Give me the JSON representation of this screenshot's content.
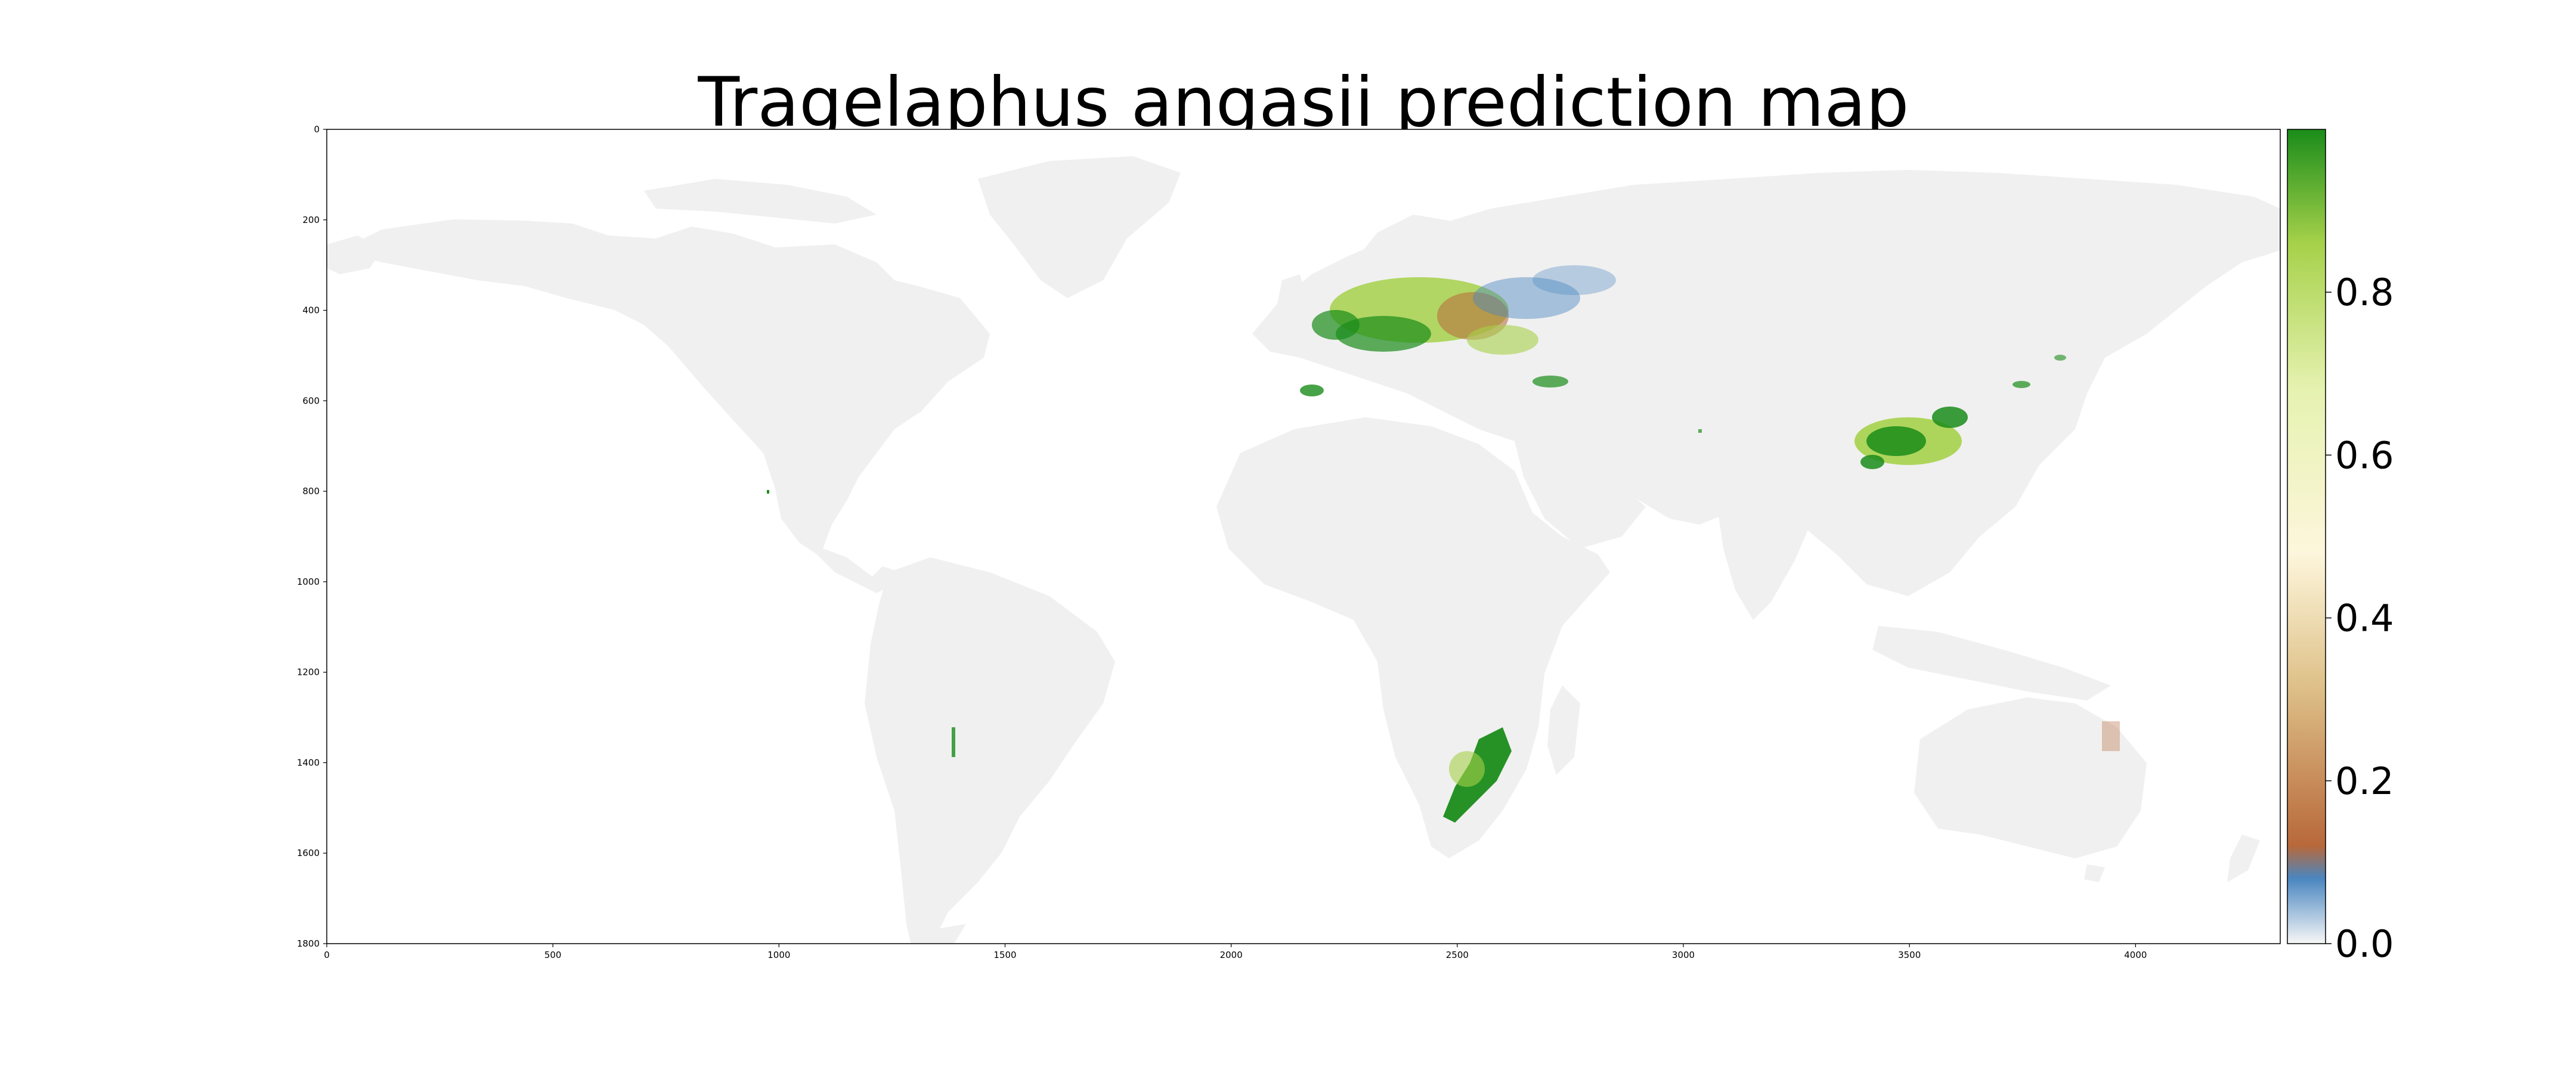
{
  "title": "Tragelaphus angasii prediction map",
  "colors": {
    "land": "#f0f0f0",
    "ocean": "#ffffff",
    "prediction_high": "#1a8c1a",
    "prediction_mid": "#a6d14a",
    "prediction_low": "#b8683a",
    "prediction_min": "#4a86c0"
  },
  "map": {
    "xlim": [
      0,
      4320
    ],
    "ylim": [
      1800,
      0
    ],
    "x_ticks": [
      "0",
      "500",
      "1000",
      "1500",
      "2000",
      "2500",
      "3000",
      "3500",
      "4000"
    ],
    "y_ticks": [
      "0",
      "200",
      "400",
      "600",
      "800",
      "1000",
      "1200",
      "1400",
      "1600",
      "1800"
    ]
  },
  "colorbar": {
    "range": [
      0.0,
      1.0
    ],
    "tick_labels": [
      "0.0",
      "0.2",
      "0.4",
      "0.6",
      "0.8"
    ],
    "colormap": [
      "#f7f7f7",
      "#4a86c0",
      "#b8683a",
      "#dfc28a",
      "#fdf6dc",
      "#e6f2b0",
      "#a6d14a",
      "#1a8c1a"
    ]
  }
}
